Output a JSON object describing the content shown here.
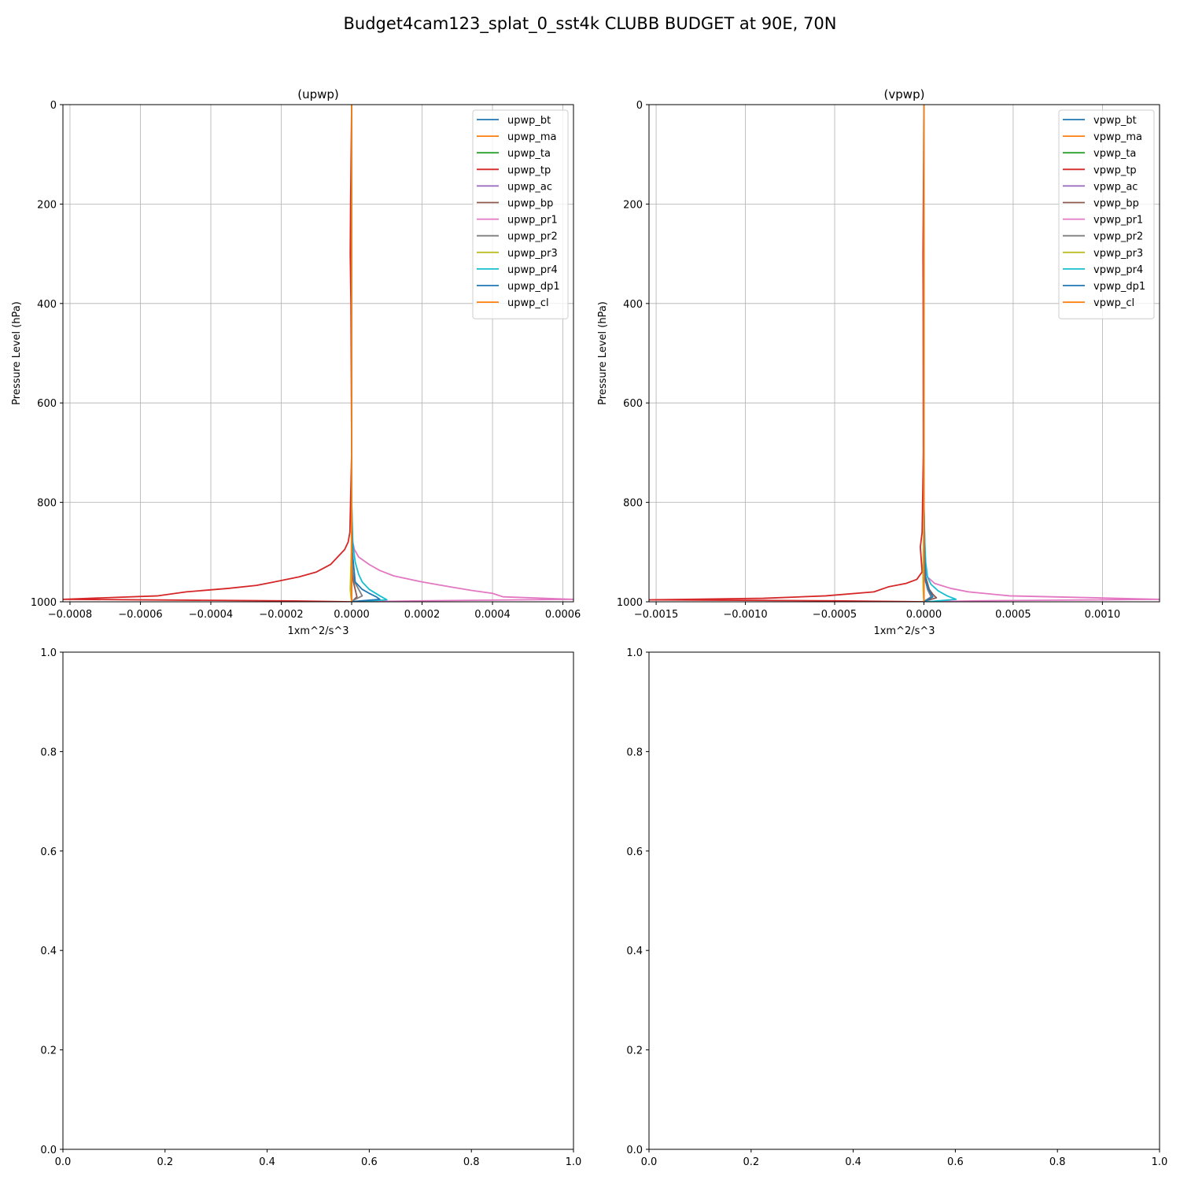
{
  "figure": {
    "title": "Budget4cam123_splat_0_sst4k CLUBB BUDGET at 90E, 70N"
  },
  "chart_data": [
    {
      "type": "line",
      "title": "(upwp)",
      "xlabel": "1xm^2/s^3",
      "ylabel": "Pressure Level (hPa)",
      "xlim": [
        -0.00082,
        0.00063
      ],
      "ylim": [
        1000,
        0
      ],
      "grid": true,
      "legend": "top-right",
      "xticks": [
        -0.0008,
        -0.0006,
        -0.0004,
        -0.0002,
        0.0,
        0.0002,
        0.0004,
        0.0006
      ],
      "xtick_labels": [
        "−0.0008",
        "−0.0006",
        "−0.0004",
        "−0.0002",
        "0.0000",
        "0.0002",
        "0.0004",
        "0.0006"
      ],
      "yticks": [
        0,
        200,
        400,
        600,
        800,
        1000
      ],
      "ytick_labels": [
        "0",
        "200",
        "400",
        "600",
        "800",
        "1000"
      ],
      "series": [
        {
          "name": "upwp_bt",
          "color": "#1f77b4",
          "x": [
            0,
            0,
            0,
            0,
            0,
            0,
            0
          ],
          "y": [
            0,
            200,
            400,
            600,
            800,
            900,
            1000
          ]
        },
        {
          "name": "upwp_ma",
          "color": "#ff7f0e",
          "x": [
            0,
            0,
            0,
            0,
            0,
            0,
            0
          ],
          "y": [
            0,
            200,
            400,
            600,
            800,
            900,
            1000
          ]
        },
        {
          "name": "upwp_ta",
          "color": "#2ca02c",
          "x": [
            0,
            0,
            0,
            0,
            0,
            0,
            0
          ],
          "y": [
            0,
            200,
            400,
            600,
            800,
            900,
            1000
          ]
        },
        {
          "name": "upwp_tp",
          "color": "#d62728",
          "x": [
            0,
            -3e-06,
            -4e-06,
            -2e-06,
            0,
            -5e-06,
            -1e-05,
            -2e-05,
            -4e-05,
            -6e-05,
            -0.0001,
            -0.00015,
            -0.00022,
            -0.00027,
            -0.00035,
            -0.00047,
            -0.00055,
            -0.00082,
            -0.0002,
            0
          ],
          "y": [
            0,
            200,
            300,
            400,
            700,
            860,
            880,
            895,
            910,
            925,
            940,
            950,
            960,
            967,
            973,
            980,
            988,
            995,
            998,
            1000
          ]
        },
        {
          "name": "upwp_ac",
          "color": "#9467bd",
          "x": [
            0,
            0,
            0,
            0,
            0,
            1e-06,
            0
          ],
          "y": [
            0,
            200,
            400,
            600,
            800,
            900,
            1000
          ]
        },
        {
          "name": "upwp_bp",
          "color": "#8c564b",
          "x": [
            0,
            0,
            0,
            0,
            2e-06,
            5e-06,
            1e-05,
            1.5e-05,
            0
          ],
          "y": [
            0,
            400,
            800,
            900,
            940,
            960,
            975,
            990,
            1000
          ]
        },
        {
          "name": "upwp_pr1",
          "color": "#e377c2",
          "x": [
            0,
            0,
            0,
            1e-06,
            3e-06,
            8e-06,
            2e-05,
            5e-05,
            8e-05,
            0.00012,
            0.0002,
            0.00028,
            0.00034,
            0.0004,
            0.00043,
            0.00063,
            0.0002,
            0
          ],
          "y": [
            0,
            400,
            800,
            860,
            880,
            895,
            910,
            925,
            937,
            948,
            960,
            970,
            977,
            983,
            990,
            995,
            998,
            1000
          ]
        },
        {
          "name": "upwp_pr2",
          "color": "#7f7f7f",
          "x": [
            0,
            0,
            0,
            0,
            3e-06,
            8e-06,
            2e-05,
            3e-05,
            5e-06,
            0
          ],
          "y": [
            0,
            400,
            800,
            900,
            940,
            960,
            975,
            988,
            997,
            1000
          ]
        },
        {
          "name": "upwp_pr3",
          "color": "#bcbd22",
          "x": [
            0,
            0,
            0,
            -1e-06,
            -3e-06,
            -4e-06,
            -2e-06,
            0
          ],
          "y": [
            0,
            400,
            800,
            900,
            950,
            975,
            990,
            1000
          ]
        },
        {
          "name": "upwp_pr4",
          "color": "#17becf",
          "x": [
            0,
            0,
            0,
            3e-06,
            1e-05,
            2e-05,
            3e-05,
            5e-05,
            8e-05,
            0.0001,
            3e-05,
            0
          ],
          "y": [
            0,
            400,
            800,
            880,
            920,
            945,
            960,
            975,
            988,
            996,
            999,
            1000
          ]
        },
        {
          "name": "upwp_dp1",
          "color": "#1f77b4",
          "x": [
            0,
            0,
            0,
            2e-06,
            1e-05,
            3e-05,
            5e-05,
            7e-05,
            8e-05,
            1e-05,
            0
          ],
          "y": [
            0,
            400,
            800,
            900,
            960,
            975,
            983,
            990,
            995,
            999,
            1000
          ]
        },
        {
          "name": "upwp_cl",
          "color": "#ff7f0e",
          "x": [
            0,
            0,
            0,
            0,
            0,
            0,
            0
          ],
          "y": [
            0,
            200,
            400,
            600,
            800,
            900,
            1000
          ]
        }
      ]
    },
    {
      "type": "line",
      "title": "(vpwp)",
      "xlabel": "1xm^2/s^3",
      "ylabel": "Pressure Level (hPa)",
      "xlim": [
        -0.00154,
        0.00132
      ],
      "ylim": [
        1000,
        0
      ],
      "grid": true,
      "legend": "top-right",
      "xticks": [
        -0.0015,
        -0.001,
        -0.0005,
        0.0,
        0.0005,
        0.001
      ],
      "xtick_labels": [
        "−0.0015",
        "−0.0010",
        "−0.0005",
        "0.0000",
        "0.0005",
        "0.0010"
      ],
      "yticks": [
        0,
        200,
        400,
        600,
        800,
        1000
      ],
      "ytick_labels": [
        "0",
        "200",
        "400",
        "600",
        "800",
        "1000"
      ],
      "series": [
        {
          "name": "vpwp_bt",
          "color": "#1f77b4",
          "x": [
            0,
            0,
            0,
            0,
            0,
            0,
            0
          ],
          "y": [
            0,
            200,
            400,
            600,
            800,
            900,
            1000
          ]
        },
        {
          "name": "vpwp_ma",
          "color": "#ff7f0e",
          "x": [
            0,
            0,
            0,
            0,
            0,
            0,
            0
          ],
          "y": [
            0,
            200,
            400,
            600,
            800,
            900,
            1000
          ]
        },
        {
          "name": "vpwp_ta",
          "color": "#2ca02c",
          "x": [
            0,
            0,
            0,
            0,
            0,
            0,
            0
          ],
          "y": [
            0,
            200,
            400,
            600,
            800,
            900,
            1000
          ]
        },
        {
          "name": "vpwp_tp",
          "color": "#d62728",
          "x": [
            0,
            -3e-06,
            -5e-06,
            -4e-06,
            -3e-06,
            -1e-05,
            -2e-05,
            -1e-05,
            -4e-05,
            -0.0001,
            -0.0002,
            -0.00028,
            -0.00055,
            -0.0009,
            -0.00154,
            -0.0005,
            0
          ],
          "y": [
            0,
            200,
            300,
            400,
            700,
            860,
            890,
            940,
            955,
            963,
            970,
            980,
            988,
            993,
            996,
            998,
            1000
          ]
        },
        {
          "name": "vpwp_ac",
          "color": "#9467bd",
          "x": [
            0,
            0,
            0,
            0,
            0,
            2e-06,
            0
          ],
          "y": [
            0,
            200,
            400,
            600,
            800,
            900,
            1000
          ]
        },
        {
          "name": "vpwp_bp",
          "color": "#8c564b",
          "x": [
            0,
            0,
            0,
            5e-06,
            1e-05,
            3e-05,
            5e-05,
            7e-05,
            1e-05,
            0
          ],
          "y": [
            0,
            400,
            800,
            900,
            950,
            975,
            985,
            992,
            998,
            1000
          ]
        },
        {
          "name": "vpwp_pr1",
          "color": "#e377c2",
          "x": [
            0,
            0,
            0,
            3e-06,
            1e-05,
            2e-05,
            6e-05,
            0.00015,
            0.00025,
            0.00048,
            0.00132,
            0.0003,
            0
          ],
          "y": [
            0,
            400,
            800,
            900,
            930,
            950,
            963,
            973,
            980,
            988,
            995,
            998,
            1000
          ]
        },
        {
          "name": "vpwp_pr2",
          "color": "#7f7f7f",
          "x": [
            0,
            0,
            0,
            0,
            5e-06,
            2e-05,
            4e-05,
            1e-05,
            0
          ],
          "y": [
            0,
            400,
            800,
            900,
            950,
            975,
            990,
            997,
            1000
          ]
        },
        {
          "name": "vpwp_pr3",
          "color": "#bcbd22",
          "x": [
            0,
            0,
            0,
            -3e-06,
            -5e-06,
            -4e-06,
            -2e-06,
            0
          ],
          "y": [
            0,
            400,
            800,
            900,
            950,
            975,
            990,
            1000
          ]
        },
        {
          "name": "vpwp_pr4",
          "color": "#17becf",
          "x": [
            0,
            0,
            0,
            5e-06,
            1e-05,
            2e-05,
            4e-05,
            8e-05,
            0.00013,
            0.00018,
            5e-05,
            0
          ],
          "y": [
            0,
            400,
            800,
            880,
            920,
            950,
            965,
            978,
            988,
            995,
            999,
            1000
          ]
        },
        {
          "name": "vpwp_dp1",
          "color": "#1f77b4",
          "x": [
            0,
            0,
            0,
            3e-06,
            1e-05,
            3e-05,
            5e-05,
            1e-05,
            0
          ],
          "y": [
            0,
            400,
            800,
            900,
            960,
            978,
            990,
            998,
            1000
          ]
        },
        {
          "name": "vpwp_cl",
          "color": "#ff7f0e",
          "x": [
            0,
            0,
            0,
            0,
            0,
            0,
            0
          ],
          "y": [
            0,
            200,
            400,
            600,
            800,
            900,
            1000
          ]
        }
      ]
    },
    {
      "type": "line",
      "title": "",
      "xlim": [
        0,
        1
      ],
      "ylim": [
        0,
        1
      ],
      "grid": false,
      "xticks": [
        0,
        0.2,
        0.4,
        0.6,
        0.8,
        1
      ],
      "xtick_labels": [
        "0.0",
        "0.2",
        "0.4",
        "0.6",
        "0.8",
        "1.0"
      ],
      "yticks": [
        0,
        0.2,
        0.4,
        0.6,
        0.8,
        1
      ],
      "ytick_labels": [
        "0.0",
        "0.2",
        "0.4",
        "0.6",
        "0.8",
        "1.0"
      ],
      "series": []
    },
    {
      "type": "line",
      "title": "",
      "xlim": [
        0,
        1
      ],
      "ylim": [
        0,
        1
      ],
      "grid": false,
      "xticks": [
        0,
        0.2,
        0.4,
        0.6,
        0.8,
        1
      ],
      "xtick_labels": [
        "0.0",
        "0.2",
        "0.4",
        "0.6",
        "0.8",
        "1.0"
      ],
      "yticks": [
        0,
        0.2,
        0.4,
        0.6,
        0.8,
        1
      ],
      "ytick_labels": [
        "0.0",
        "0.2",
        "0.4",
        "0.6",
        "0.8",
        "1.0"
      ],
      "series": []
    }
  ]
}
